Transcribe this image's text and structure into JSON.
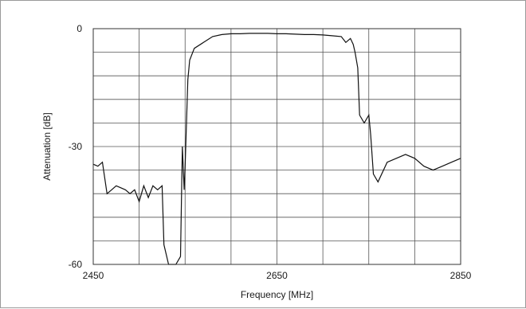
{
  "chart_data": {
    "type": "line",
    "title": "",
    "xlabel": "Frequency [MHz]",
    "ylabel": "Attenuation  [dB]",
    "xlim": [
      2450,
      2850
    ],
    "ylim": [
      -60,
      0
    ],
    "x_ticks": [
      2450,
      2650,
      2850
    ],
    "y_ticks": [
      0,
      -30,
      -60
    ],
    "x_tick_labels": [
      "2450",
      "2650",
      "2850"
    ],
    "y_tick_labels": [
      "0",
      "-30",
      "-60"
    ],
    "grid": true,
    "grid_x_step": 50,
    "grid_y_step": 6,
    "line_color": "#111111",
    "grid_color": "#555555",
    "series": [
      {
        "x": [
          2450,
          2455,
          2460,
          2465,
          2470,
          2475,
          2480,
          2485,
          2490,
          2495,
          2500,
          2505,
          2510,
          2515,
          2520,
          2525,
          2527,
          2530,
          2532,
          2535,
          2540,
          2545,
          2547,
          2549,
          2550,
          2552,
          2553,
          2555,
          2560,
          2570,
          2580,
          2590,
          2600,
          2610,
          2620,
          2630,
          2640,
          2650,
          2660,
          2670,
          2680,
          2690,
          2700,
          2710,
          2720,
          2725,
          2730,
          2733,
          2735,
          2738,
          2740,
          2745,
          2750,
          2752,
          2755,
          2760,
          2770,
          2780,
          2790,
          2800,
          2810,
          2820,
          2830,
          2840,
          2850
        ],
        "y": [
          -34.5,
          -35,
          -34,
          -42,
          -41,
          -40,
          -40.5,
          -41,
          -42,
          -41,
          -44,
          -40,
          -43,
          -40,
          -41,
          -40,
          -55,
          -58,
          -60,
          -60,
          -60,
          -58,
          -30,
          -41,
          -35,
          -20,
          -13,
          -8,
          -5,
          -3.5,
          -2,
          -1.5,
          -1.3,
          -1.3,
          -1.2,
          -1.2,
          -1.2,
          -1.3,
          -1.3,
          -1.4,
          -1.5,
          -1.5,
          -1.6,
          -1.8,
          -2,
          -3.5,
          -2.5,
          -4,
          -6,
          -10,
          -22,
          -24,
          -22,
          -27,
          -37,
          -39,
          -34,
          -33,
          -32,
          -33,
          -35,
          -36,
          -35,
          -34,
          -33
        ]
      }
    ]
  }
}
